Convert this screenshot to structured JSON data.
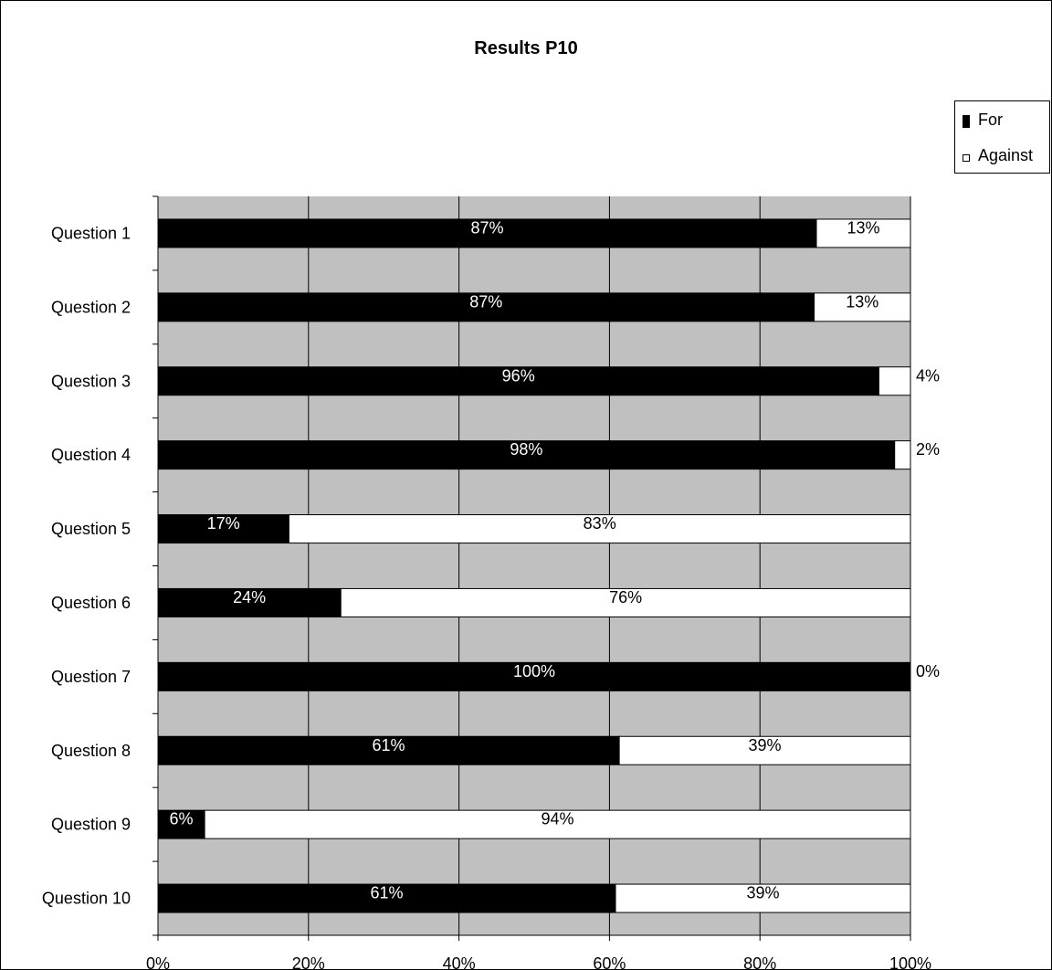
{
  "chart_data": {
    "type": "bar",
    "orientation": "horizontal",
    "stacked": "percent",
    "title": "Results P10",
    "categories": [
      "Question 1",
      "Question 2",
      "Question 3",
      "Question 4",
      "Question 5",
      "Question 6",
      "Question 7",
      "Question 8",
      "Question 9",
      "Question 10"
    ],
    "series": [
      {
        "name": "For",
        "color": "#000000",
        "values": [
          87.5,
          87.2,
          95.8,
          97.9,
          17.4,
          24.3,
          100,
          61.3,
          6.2,
          60.8
        ],
        "labels": [
          "87%",
          "87%",
          "96%",
          "98%",
          "17%",
          "24%",
          "100%",
          "61%",
          "6%",
          "61%"
        ]
      },
      {
        "name": "Against",
        "color": "#ffffff",
        "values": [
          12.5,
          12.8,
          4.2,
          2.1,
          82.6,
          75.7,
          0,
          38.7,
          93.8,
          39.2
        ],
        "labels": [
          "13%",
          "13%",
          "4%",
          "2%",
          "83%",
          "76%",
          "0%",
          "39%",
          "94%",
          "39%"
        ]
      }
    ],
    "xlim": [
      0,
      100
    ],
    "xticks": [
      "0%",
      "20%",
      "40%",
      "60%",
      "80%",
      "100%"
    ],
    "xlabel": "",
    "ylabel": "",
    "grid": true,
    "plot_background": "#c0c0c0",
    "legend": "right"
  }
}
